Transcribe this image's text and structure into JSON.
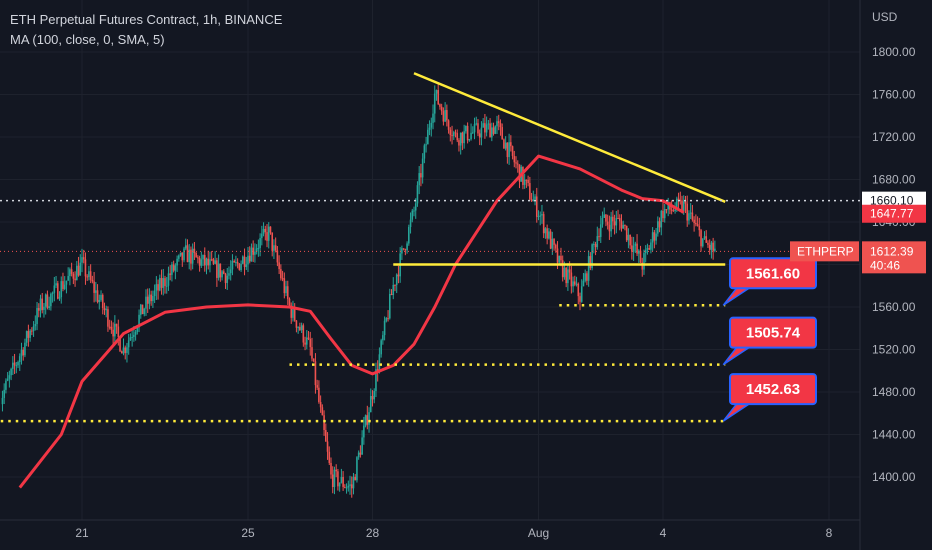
{
  "header": {
    "title": "ETH Perpetual Futures Contract, 1h, BINANCE",
    "indicator": "MA (100, close, 0, SMA, 5)"
  },
  "colors": {
    "background": "#131722",
    "up": "#26a69a",
    "down": "#ef5350",
    "ma": "#f23645",
    "trend": "#ffeb3b",
    "axis_text": "#b2b5be",
    "label_box": "#f23645",
    "label_border": "#2962ff"
  },
  "chart_data": {
    "type": "candlestick",
    "symbol": "ETHPERP",
    "currency_label": "USD",
    "ylim": [
      1370,
      1830
    ],
    "y_ticks": [
      "1800.00",
      "1760.00",
      "1720.00",
      "1680.00",
      "1640.00",
      "1600.00",
      "1560.00",
      "1520.00",
      "1480.00",
      "1440.00",
      "1400.00"
    ],
    "x_ticks": [
      "21",
      "25",
      "28",
      "Aug",
      "4",
      "8"
    ],
    "price_series": {
      "name": "ETHPERP",
      "x": [
        "Jul 19 00:00",
        "Jul 20 00:00",
        "Jul 21 00:00",
        "Jul 22 00:00",
        "Jul 22 12:00",
        "Jul 23 12:00",
        "Jul 24 12:00",
        "Jul 25 12:00",
        "Jul 26 00:00",
        "Jul 26 12:00",
        "Jul 27 00:00",
        "Jul 27 12:00",
        "Jul 28 00:00",
        "Jul 28 12:00",
        "Jul 29 00:00",
        "Jul 29 12:00",
        "Jul 30 00:00",
        "Jul 31 00:00",
        "Jul 31 12:00",
        "Aug 1 00:00",
        "Aug 1 12:00",
        "Aug 2 00:00",
        "Aug 2 12:00",
        "Aug 3 00:00",
        "Aug 3 12:00",
        "Aug 4 00:00",
        "Aug 4 12:00",
        "Aug 5 00:00",
        "Aug 5 06:00"
      ],
      "close": [
        1470,
        1560,
        1600,
        1520,
        1560,
        1610,
        1590,
        1630,
        1560,
        1520,
        1400,
        1390,
        1480,
        1580,
        1650,
        1760,
        1720,
        1730,
        1690,
        1650,
        1600,
        1570,
        1640,
        1640,
        1600,
        1650,
        1655,
        1620,
        1612.39
      ]
    },
    "ma_series": {
      "name": "MA (100, close, 0, SMA, 5)",
      "x": [
        "Jul 19 12:00",
        "Jul 20 12:00",
        "Jul 21 00:00",
        "Jul 22 00:00",
        "Jul 23 00:00",
        "Jul 24 00:00",
        "Jul 25 00:00",
        "Jul 26 00:00",
        "Jul 26 12:00",
        "Jul 27 00:00",
        "Jul 27 12:00",
        "Jul 28 00:00",
        "Jul 28 12:00",
        "Jul 29 00:00",
        "Jul 29 12:00",
        "Jul 30 00:00",
        "Jul 31 00:00",
        "Aug 1 00:00",
        "Aug 2 00:00",
        "Aug 3 00:00",
        "Aug 3 12:00",
        "Aug 4 00:00",
        "Aug 4 12:00"
      ],
      "values": [
        1390,
        1440,
        1490,
        1535,
        1555,
        1560,
        1562,
        1560,
        1556,
        1530,
        1505,
        1497,
        1505,
        1525,
        1560,
        1600,
        1660,
        1702,
        1690,
        1670,
        1662,
        1660,
        1649
      ]
    },
    "annotations": {
      "descending_trendline": {
        "x": [
          "Jul 29 00:00",
          "Aug 5 12:00"
        ],
        "y": [
          1780,
          1659
        ]
      },
      "support_line": {
        "x": [
          "Jul 28 12:00",
          "Aug 5 12:00"
        ],
        "y": [
          1600,
          1600
        ]
      },
      "levels": [
        {
          "value": "1561.60",
          "x_start": "Aug 1 12:00"
        },
        {
          "value": "1505.74",
          "x_start": "Jul 26 00:00"
        },
        {
          "value": "1452.63",
          "x_start": "Jul 18 12:00"
        }
      ],
      "crosshair_price": "1660.10"
    },
    "price_labels": {
      "crosshair": "1660.10",
      "ma": "1647.77",
      "symbol": "ETHPERP",
      "last_price": "1612.39",
      "countdown": "40:46"
    }
  }
}
